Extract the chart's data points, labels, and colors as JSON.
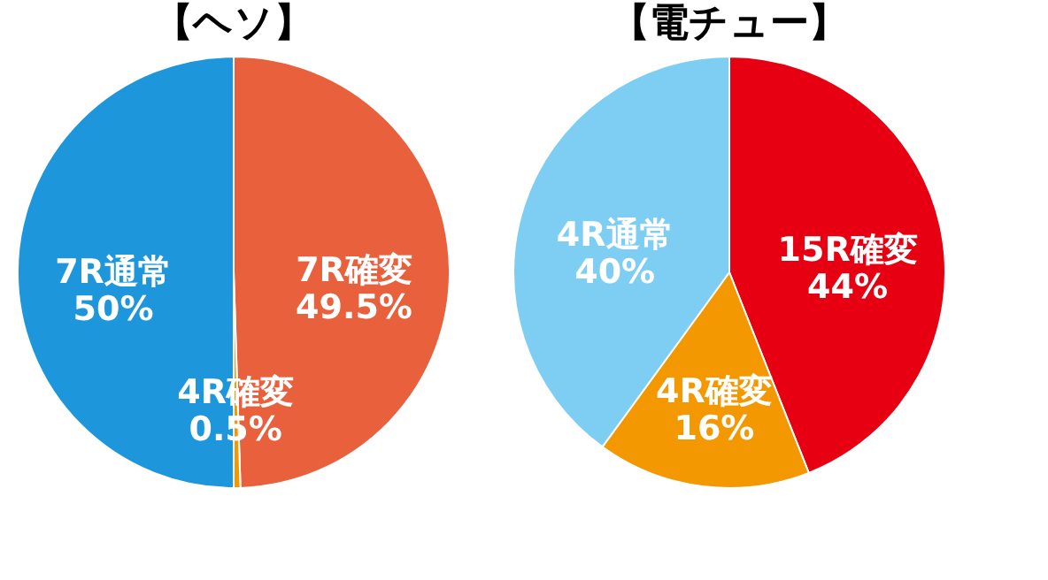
{
  "chart_data": [
    {
      "type": "pie",
      "title": "【ヘソ】",
      "categories": [
        "7R確変",
        "4R確変",
        "7R通常"
      ],
      "values": [
        49.5,
        0.5,
        50
      ],
      "colors": [
        "#e8603c",
        "#f39800",
        "#1e96dc"
      ],
      "value_labels": [
        "49.5%",
        "0.5%",
        "50%"
      ]
    },
    {
      "type": "pie",
      "title": "【電チュー】",
      "categories": [
        "15R確変",
        "4R確変",
        "4R通常"
      ],
      "values": [
        44,
        16,
        40
      ],
      "colors": [
        "#e60012",
        "#f39800",
        "#7ecef4"
      ],
      "value_labels": [
        "44%",
        "16%",
        "40%"
      ]
    }
  ]
}
